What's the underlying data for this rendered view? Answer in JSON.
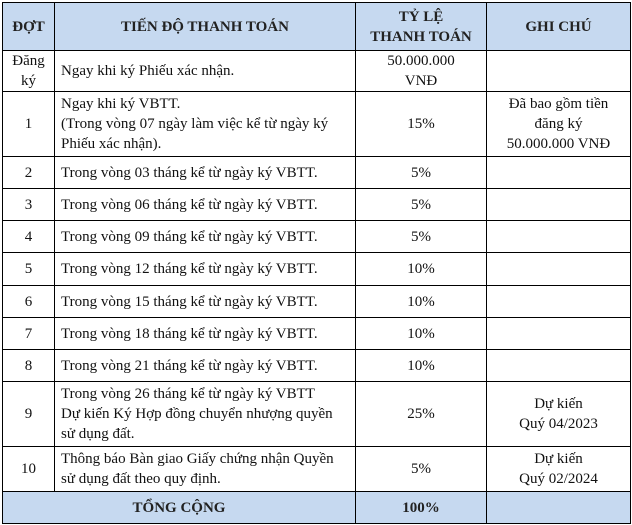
{
  "table": {
    "header": [
      [
        "ĐỢT"
      ],
      [
        "TIẾN ĐỘ THANH TOÁN"
      ],
      [
        "TỶ LỆ",
        "THANH TOÁN"
      ],
      [
        "GHI CHÚ"
      ]
    ],
    "rows": [
      [
        [
          "Đăng",
          "ký"
        ],
        [
          "Ngay khi ký Phiếu xác nhận."
        ],
        [
          "50.000.000",
          "VNĐ"
        ],
        []
      ],
      [
        [
          "1"
        ],
        [
          "Ngay khi ký VBTT.",
          "(Trong vòng 07 ngày làm việc kể từ ngày ký",
          "Phiếu xác nhận)."
        ],
        [
          "15%"
        ],
        [
          "Đã bao gồm tiền",
          "đăng ký",
          "50.000.000 VNĐ"
        ]
      ],
      [
        [
          "2"
        ],
        [
          "Trong vòng 03 tháng kể từ ngày ký VBTT."
        ],
        [
          "5%"
        ],
        []
      ],
      [
        [
          "3"
        ],
        [
          "Trong vòng 06 tháng kể từ ngày ký VBTT."
        ],
        [
          "5%"
        ],
        []
      ],
      [
        [
          "4"
        ],
        [
          "Trong vòng 09 tháng kể từ ngày ký VBTT."
        ],
        [
          "5%"
        ],
        []
      ],
      [
        [
          "5"
        ],
        [
          "Trong vòng 12 tháng kể từ ngày ký VBTT."
        ],
        [
          "10%"
        ],
        []
      ],
      [
        [
          "6"
        ],
        [
          "Trong vòng 15 tháng kể từ ngày ký VBTT."
        ],
        [
          "10%"
        ],
        []
      ],
      [
        [
          "7"
        ],
        [
          "Trong vòng 18 tháng kể từ ngày ký VBTT."
        ],
        [
          "10%"
        ],
        []
      ],
      [
        [
          "8"
        ],
        [
          "Trong vòng 21 tháng kể từ ngày ký VBTT."
        ],
        [
          "10%"
        ],
        []
      ],
      [
        [
          "9"
        ],
        [
          "Trong vòng 26 tháng kể từ ngày ký VBTT",
          "Dự kiến Ký Hợp đồng chuyển nhượng quyền",
          "sử dụng đất."
        ],
        [
          "25%"
        ],
        [
          "Dự kiến",
          "Quý 04/2023"
        ]
      ],
      [
        [
          "10"
        ],
        [
          "Thông báo Bàn giao Giấy chứng nhận Quyền",
          "sử dụng đất theo quy định."
        ],
        [
          "5%"
        ],
        [
          "Dự kiến",
          "Quý 02/2024"
        ]
      ]
    ],
    "total": [
      [
        "TỔNG CỘNG"
      ],
      [
        "100%"
      ]
    ]
  }
}
